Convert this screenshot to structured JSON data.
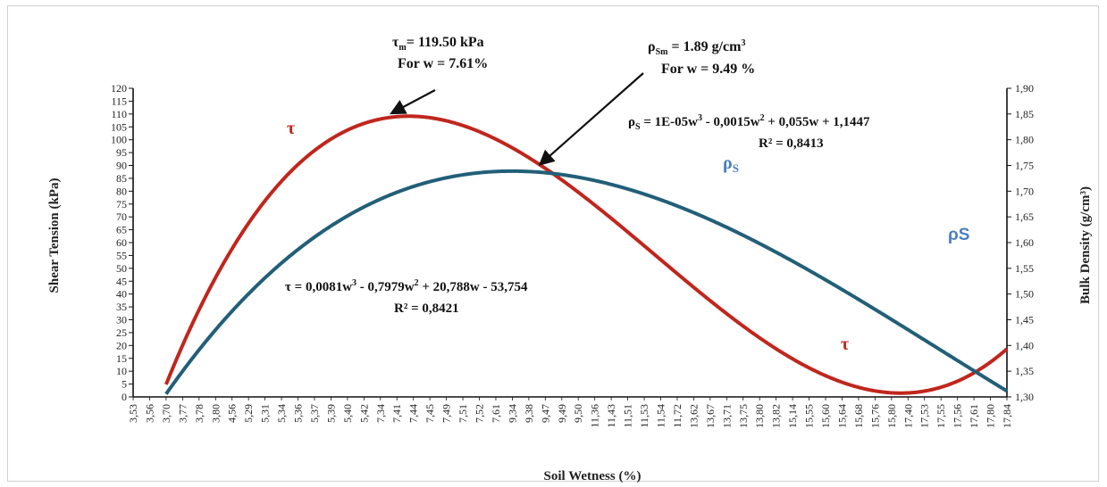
{
  "chart_data": {
    "type": "line",
    "xlabel": "Soil Wetness (%)",
    "ylabel": "Shear Tension (kPa)",
    "y2label": "Bulk Density (g/cm³)",
    "ylim": [
      0,
      120
    ],
    "y2lim": [
      1.3,
      1.9
    ],
    "y_ticks": [
      "0",
      "5",
      "10",
      "15",
      "20",
      "25",
      "30",
      "35",
      "40",
      "45",
      "50",
      "55",
      "60",
      "65",
      "70",
      "75",
      "80",
      "85",
      "90",
      "95",
      "100",
      "105",
      "110",
      "115",
      "120"
    ],
    "y2_ticks": [
      "1,30",
      "1,35",
      "1,40",
      "1,45",
      "1,50",
      "1,55",
      "1,60",
      "1,65",
      "1,70",
      "1,75",
      "1,80",
      "1,85",
      "1,90"
    ],
    "categories": [
      "3,53",
      "3,56",
      "3,70",
      "3,77",
      "3,78",
      "3,80",
      "4,56",
      "5,29",
      "5,31",
      "5,34",
      "5,36",
      "5,37",
      "5,39",
      "5,40",
      "5,42",
      "7,34",
      "7,41",
      "7,44",
      "7,45",
      "7,49",
      "7,51",
      "7,52",
      "7,61",
      "9,34",
      "9,38",
      "9,47",
      "9,49",
      "9,50",
      "11,36",
      "11,43",
      "11,51",
      "11,53",
      "11,54",
      "11,72",
      "13,62",
      "13,67",
      "13,71",
      "13,75",
      "13,80",
      "13,82",
      "15,14",
      "15,55",
      "15,60",
      "15,64",
      "15,68",
      "15,76",
      "15,80",
      "17,40",
      "17,53",
      "17,55",
      "17,56",
      "17,61",
      "17,80",
      "17,84"
    ],
    "x_start_index": 2,
    "series": [
      {
        "symbol": "τ",
        "labels": [
          "τ",
          "τ"
        ],
        "axis": "left",
        "color": "#c0261d",
        "polynomial_in_index": [
          0.0081,
          -0.7979,
          20.788,
          -53.754
        ],
        "floor": 0
      },
      {
        "symbol": "ρS",
        "labels": [
          "ρ",
          "ρS"
        ],
        "axis": "right",
        "color": "#225f78",
        "polynomial_in_index": [
          1e-05,
          -0.0015,
          0.055,
          1.1447
        ]
      }
    ],
    "annotations": {
      "tau_max_line1": "= 119.50 kPa",
      "tau_max_sym": "τ",
      "tau_max_sub": "m",
      "tau_max_line2": "For w = 7.61%",
      "rho_max_sym": "ρ",
      "rho_max_sub": "Sm",
      "rho_max_line1": " = 1.89 g/cm",
      "rho_max_sup": "3",
      "rho_max_line2": "For w = 9.49 %",
      "tau_eq_pre": "τ = 0,0081w",
      "tau_eq_mid1": " - 0,7979w",
      "tau_eq_mid2": " + 20,788w - 53,754",
      "tau_r2": "R² = 0,8421",
      "rho_eq_sym": "ρ",
      "rho_eq_sub": "S",
      "rho_eq_pre": " = 1E-05w",
      "rho_eq_mid1": " - 0,0015w",
      "rho_eq_mid2": " + 0,055w + 1,1447",
      "rho_r2": "R² = 0,8413",
      "sup3": "3",
      "sup2": "2"
    },
    "colors": {
      "tau": "#c0261d",
      "rho": "#225f78",
      "rho_label": "#4a7fc1"
    }
  }
}
